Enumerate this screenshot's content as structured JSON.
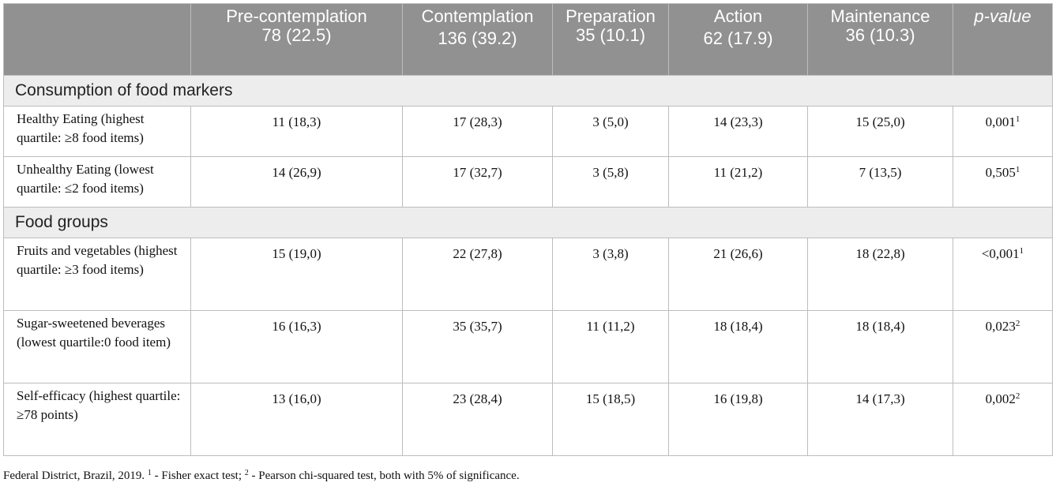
{
  "header": {
    "blank": "",
    "precontemplation": [
      "Pre-contemplation",
      "78 (22.5)"
    ],
    "contemplation": [
      "Contemplation",
      "136 (39.2)"
    ],
    "preparation": [
      "Preparation",
      "35 (10.1)"
    ],
    "action": [
      "Action",
      "62 (17.9)"
    ],
    "maintenance": [
      "Maintenance",
      "36 (10.3)"
    ],
    "pvalue": "p-value"
  },
  "sections": [
    {
      "title": "Consumption of food markers",
      "rows": [
        {
          "label": "Healthy Eating (highest quartile: ≥8 food items)",
          "values": [
            "11 (18,3)",
            "17 (28,3)",
            "3 (5,0)",
            "14 (23,3)",
            "15 (25,0)"
          ],
          "p": "0,001",
          "p_sup": "1"
        },
        {
          "label": "Unhealthy Eating (lowest quartile: ≤2 food items)",
          "values": [
            "14 (26,9)",
            "17 (32,7)",
            "3 (5,8)",
            "11 (21,2)",
            "7 (13,5)"
          ],
          "p": "0,505",
          "p_sup": "1"
        }
      ]
    },
    {
      "title": "Food groups",
      "rows": [
        {
          "label": "Fruits and vegetables (highest quartile: ≥3 food items)",
          "values": [
            "15 (19,0)",
            "22 (27,8)",
            "3 (3,8)",
            "21 (26,6)",
            "18 (22,8)"
          ],
          "p": "<0,001",
          "p_sup": "1"
        },
        {
          "label": "Sugar-sweetened beverages (lowest quartile:0 food item)",
          "values": [
            "16 (16,3)",
            "35 (35,7)",
            "11 (11,2)",
            "18 (18,4)",
            "18 (18,4)"
          ],
          "p": "0,023",
          "p_sup": "2"
        },
        {
          "label": "Self-efficacy (highest quartile: ≥78 points)",
          "values": [
            "13 (16,0)",
            "23 (28,4)",
            "15 (18,5)",
            "16 (19,8)",
            "14 (17,3)"
          ],
          "p": "0,002",
          "p_sup": "2"
        }
      ]
    }
  ],
  "footnote": {
    "prefix": "Federal District, Brazil, 2019. ",
    "sup1": "1",
    "mid": " - Fisher exact test; ",
    "sup2": "2",
    "suffix": " - Pearson chi-squared test, both with 5% of significance."
  }
}
